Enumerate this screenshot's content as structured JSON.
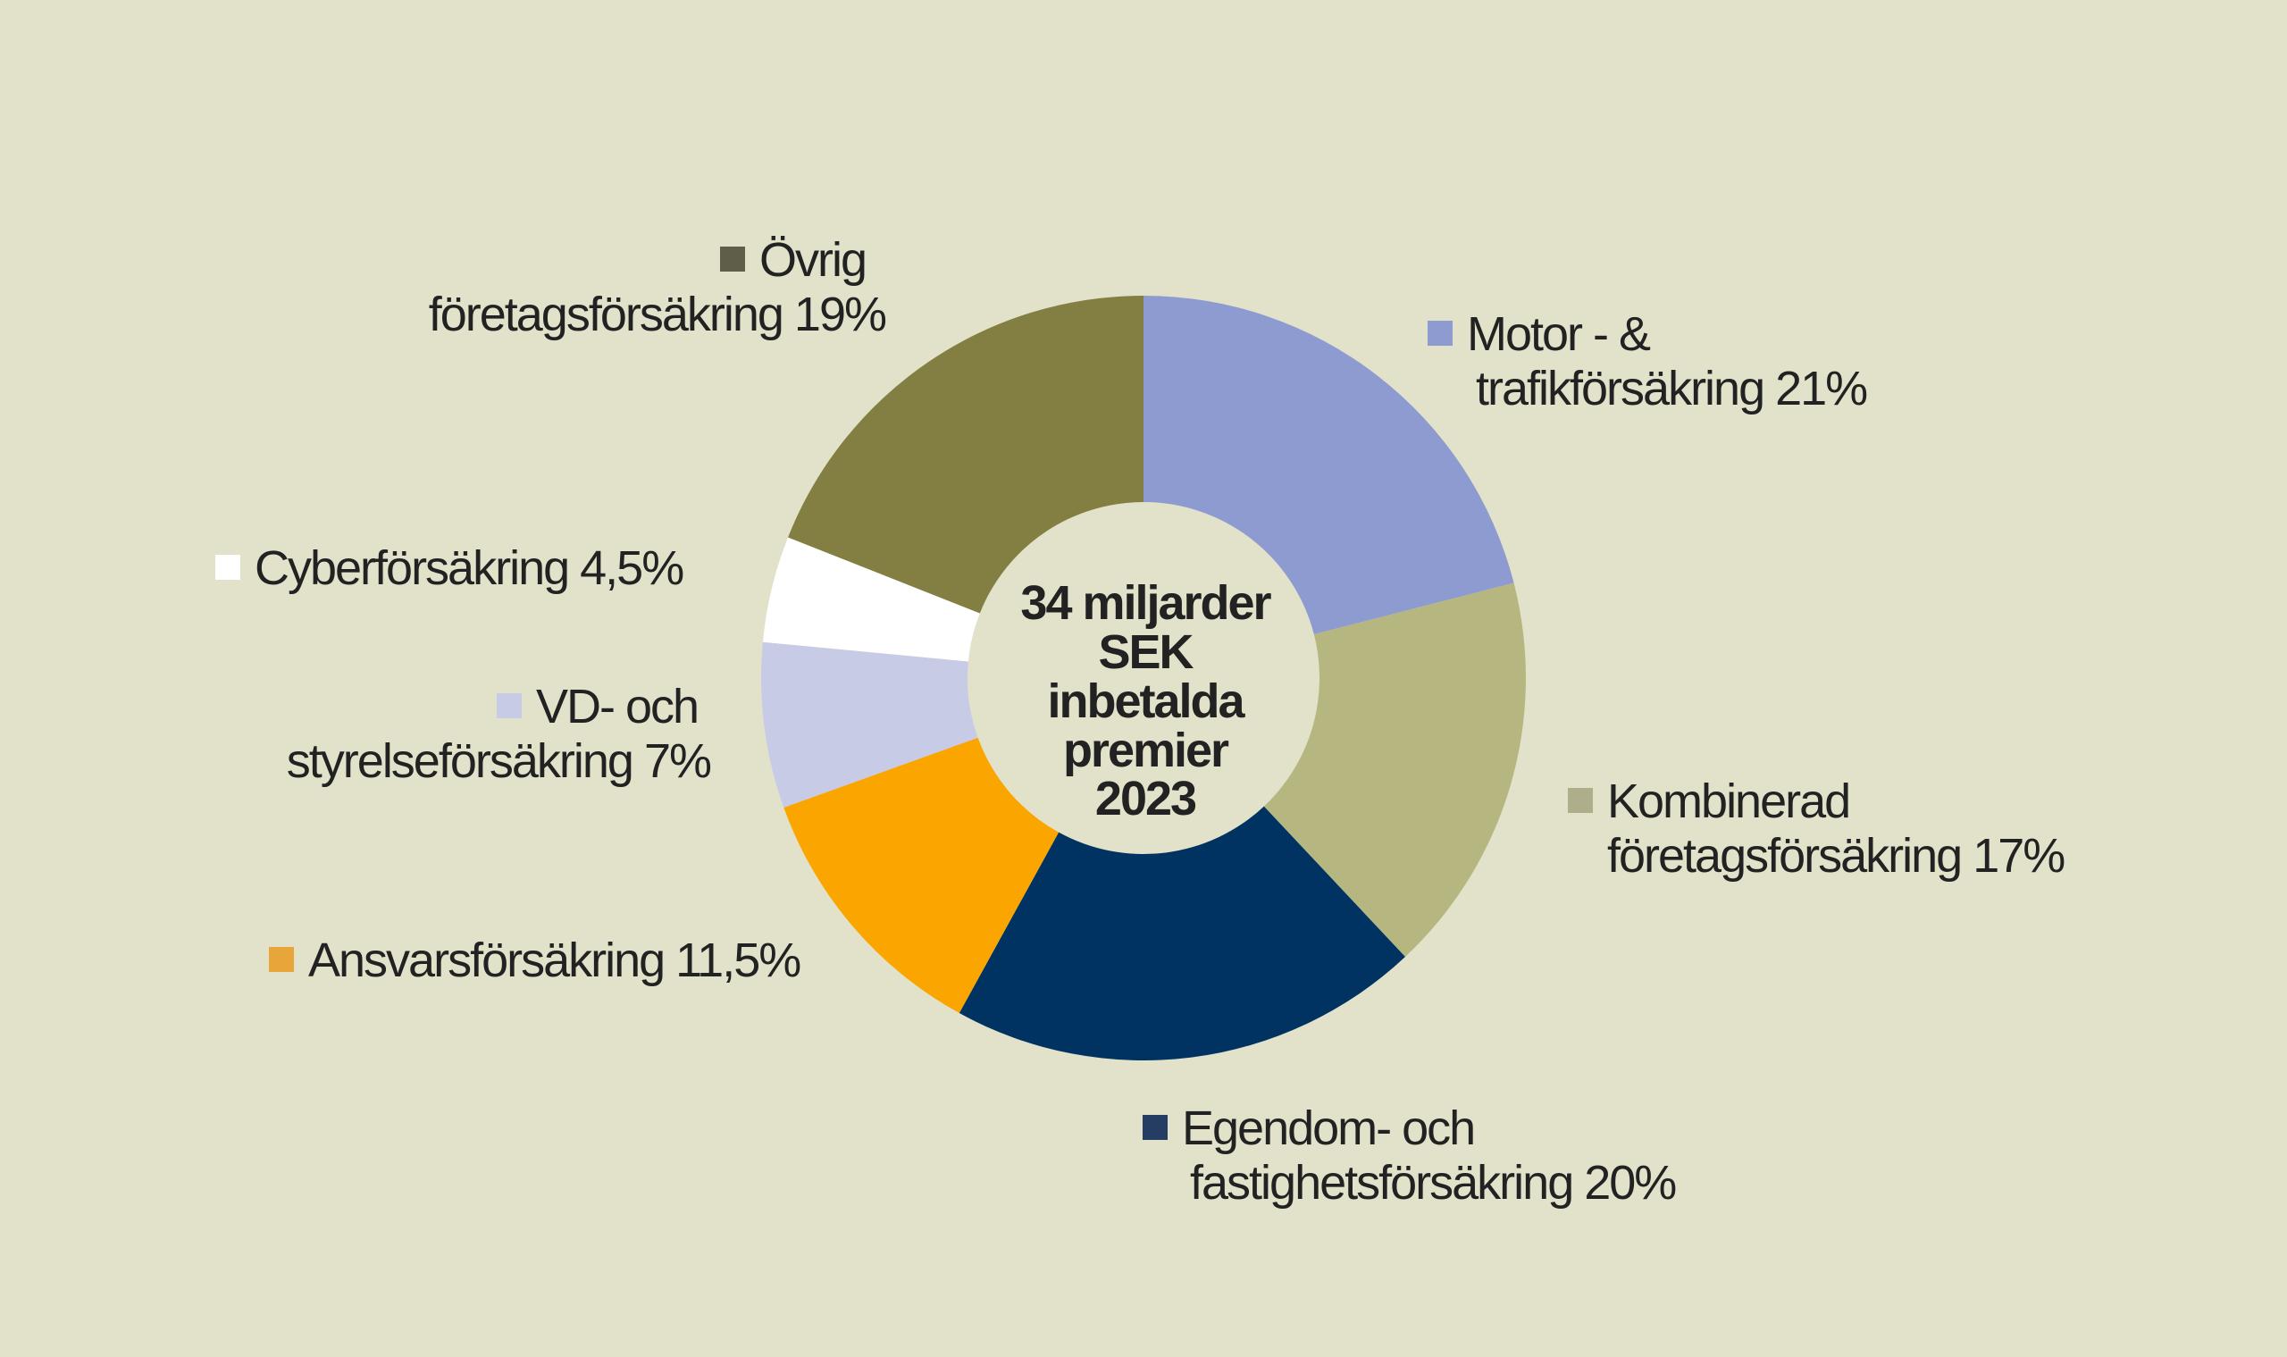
{
  "chart_data": {
    "type": "pie",
    "variant": "donut",
    "center_text": [
      "34 miljarder",
      "SEK",
      "inbetalda",
      "premier",
      "2023"
    ],
    "start": "top",
    "direction": "clockwise",
    "slices": [
      {
        "name": "Motor- & trafikförsäkring",
        "value": 21,
        "color": "#8e9bd0",
        "legend_color": "#8e9bd0",
        "label_lines": [
          "Motor - &",
          "trafikförsäkring 21%"
        ]
      },
      {
        "name": "Kombinerad företagsförsäkring",
        "value": 17,
        "color": "#b6b780",
        "legend_color": "#aeae8a",
        "label_lines": [
          "Kombinerad",
          "företagsförsäkring 17%"
        ]
      },
      {
        "name": "Egendom- och fastighetsförsäkring",
        "value": 20,
        "color": "#003361",
        "legend_color": "#263d63",
        "label_lines": [
          "Egendom- och",
          "fastighetsförsäkring 20%"
        ]
      },
      {
        "name": "Ansvarsförsäkring",
        "value": 11.5,
        "color": "#fba600",
        "legend_color": "#e8a63a",
        "label_lines": [
          "Ansvarsförsäkring 11,5%"
        ]
      },
      {
        "name": "VD- och styrelseförsäkring",
        "value": 7,
        "color": "#c7cbe6",
        "legend_color": "#c7cbe6",
        "label_lines": [
          "VD- och",
          "styrelseförsäkring 7%"
        ]
      },
      {
        "name": "Cyberförsäkring",
        "value": 4.5,
        "color": "#ffffff",
        "legend_color": "#ffffff",
        "label_lines": [
          "Cyberförsäkring 4,5%"
        ]
      },
      {
        "name": "Övrig företagsförsäkring",
        "value": 19,
        "color": "#837f42",
        "legend_color": "#5f5e48",
        "label_lines": [
          "Övrig",
          "företagsförsäkring 19%"
        ]
      }
    ],
    "background": "#e2e2cb"
  }
}
